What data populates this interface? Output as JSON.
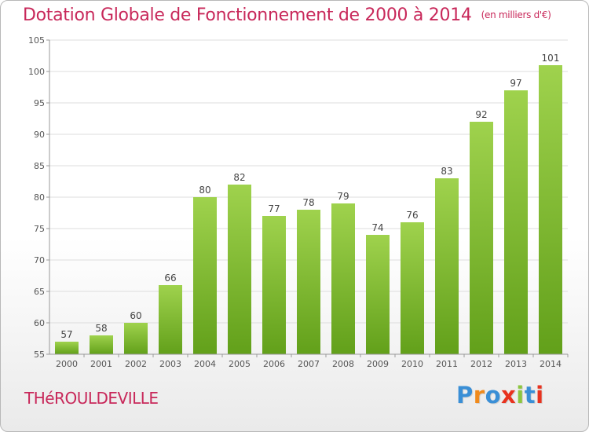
{
  "header": {
    "title": "Dotation Globale de Fonctionnement de 2000 à 2014",
    "subtitle": "(en milliers d'€)"
  },
  "footer": {
    "commune": "THéROULDEVILLE",
    "logo": {
      "letters": [
        "P",
        "r",
        "o",
        "x",
        "i",
        "t",
        "i"
      ],
      "colors": [
        "#3a8fd6",
        "#f08a1c",
        "#3a8fd6",
        "#e8321e",
        "#8cc63f",
        "#3a8fd6",
        "#e8321e"
      ]
    }
  },
  "chart_data": {
    "type": "bar",
    "title": "Dotation Globale de Fonctionnement de 2000 à 2014",
    "categories": [
      "2000",
      "2001",
      "2002",
      "2003",
      "2004",
      "2005",
      "2006",
      "2007",
      "2008",
      "2009",
      "2010",
      "2011",
      "2012",
      "2013",
      "2014"
    ],
    "values": [
      57,
      58,
      60,
      66,
      80,
      82,
      77,
      78,
      79,
      74,
      76,
      83,
      92,
      97,
      101
    ],
    "ylim": [
      55,
      105
    ],
    "yticks": [
      55,
      60,
      65,
      70,
      75,
      80,
      85,
      90,
      95,
      100,
      105
    ],
    "grid": true,
    "bar_color_top": "#9fd24d",
    "bar_color_bottom": "#62a01a",
    "xlabel": "",
    "ylabel": ""
  }
}
